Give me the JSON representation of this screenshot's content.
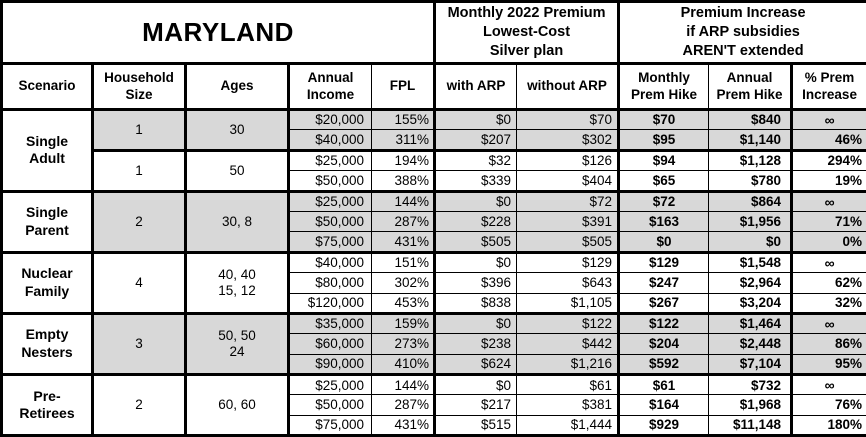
{
  "colors": {
    "shaded_band": "#d8d8d8",
    "border": "#000000",
    "background": "#ffffff",
    "text": "#000000"
  },
  "header": {
    "region": "MARYLAND",
    "premium_header": "Monthly 2022 Premium\nLowest-Cost\nSilver plan",
    "increase_header": "Premium Increase\nif ARP subsidies\nAREN'T extended",
    "columns": [
      "Scenario",
      "Household\nSize",
      "Ages",
      "Annual\nIncome",
      "FPL",
      "with ARP",
      "without ARP",
      "Monthly\nPrem Hike",
      "Annual\nPrem Hike",
      "% Prem\nIncrease"
    ]
  },
  "groups": [
    {
      "scenario": "Single\nAdult",
      "subgroups": [
        {
          "household_size": "1",
          "ages": "30",
          "shaded": true,
          "rows": [
            [
              "$20,000",
              "155%",
              "$0",
              "$70",
              "$70",
              "$840",
              "∞"
            ],
            [
              "$40,000",
              "311%",
              "$207",
              "$302",
              "$95",
              "$1,140",
              "46%"
            ]
          ]
        },
        {
          "household_size": "1",
          "ages": "50",
          "shaded": false,
          "rows": [
            [
              "$25,000",
              "194%",
              "$32",
              "$126",
              "$94",
              "$1,128",
              "294%"
            ],
            [
              "$50,000",
              "388%",
              "$339",
              "$404",
              "$65",
              "$780",
              "19%"
            ]
          ]
        }
      ]
    },
    {
      "scenario": "Single\nParent",
      "subgroups": [
        {
          "household_size": "2",
          "ages": "30, 8",
          "shaded": true,
          "rows": [
            [
              "$25,000",
              "144%",
              "$0",
              "$72",
              "$72",
              "$864",
              "∞"
            ],
            [
              "$50,000",
              "287%",
              "$228",
              "$391",
              "$163",
              "$1,956",
              "71%"
            ],
            [
              "$75,000",
              "431%",
              "$505",
              "$505",
              "$0",
              "$0",
              "0%"
            ]
          ]
        }
      ]
    },
    {
      "scenario": "Nuclear\nFamily",
      "subgroups": [
        {
          "household_size": "4",
          "ages": "40, 40\n15, 12",
          "shaded": false,
          "rows": [
            [
              "$40,000",
              "151%",
              "$0",
              "$129",
              "$129",
              "$1,548",
              "∞"
            ],
            [
              "$80,000",
              "302%",
              "$396",
              "$643",
              "$247",
              "$2,964",
              "62%"
            ],
            [
              "$120,000",
              "453%",
              "$838",
              "$1,105",
              "$267",
              "$3,204",
              "32%"
            ]
          ]
        }
      ]
    },
    {
      "scenario": "Empty\nNesters",
      "subgroups": [
        {
          "household_size": "3",
          "ages": "50, 50\n24",
          "shaded": true,
          "rows": [
            [
              "$35,000",
              "159%",
              "$0",
              "$122",
              "$122",
              "$1,464",
              "∞"
            ],
            [
              "$60,000",
              "273%",
              "$238",
              "$442",
              "$204",
              "$2,448",
              "86%"
            ],
            [
              "$90,000",
              "410%",
              "$624",
              "$1,216",
              "$592",
              "$7,104",
              "95%"
            ]
          ]
        }
      ]
    },
    {
      "scenario": "Pre-\nRetirees",
      "subgroups": [
        {
          "household_size": "2",
          "ages": "60, 60",
          "shaded": false,
          "rows": [
            [
              "$25,000",
              "144%",
              "$0",
              "$61",
              "$61",
              "$732",
              "∞"
            ],
            [
              "$50,000",
              "287%",
              "$217",
              "$381",
              "$164",
              "$1,968",
              "76%"
            ],
            [
              "$75,000",
              "431%",
              "$515",
              "$1,444",
              "$929",
              "$11,148",
              "180%"
            ]
          ]
        }
      ]
    }
  ]
}
